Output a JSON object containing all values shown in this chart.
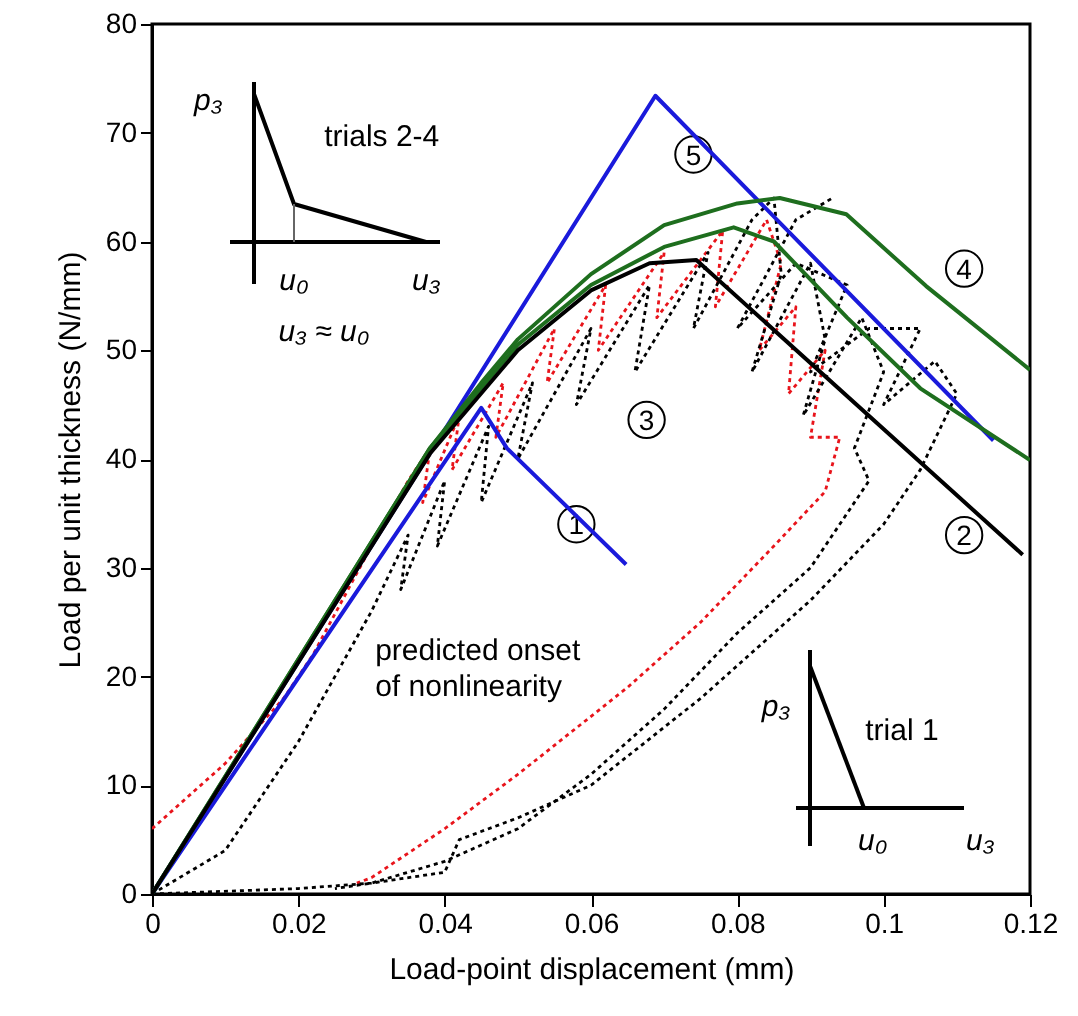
{
  "chart_data": {
    "type": "line",
    "xlabel": "Load-point displacement (mm)",
    "ylabel": "Load per unit thickness (N/mm)",
    "xlim": [
      0,
      0.12
    ],
    "xticks": [
      0,
      0.02,
      0.04,
      0.06,
      0.08,
      0.1,
      0.12
    ],
    "ylim": [
      0,
      80
    ],
    "yticks": [
      0,
      10,
      20,
      30,
      40,
      50,
      60,
      70,
      80
    ],
    "series": [
      {
        "color": "#e8141b",
        "line_style": "dotted",
        "x": [
          0,
          0.01,
          0.018,
          0.022,
          0.03,
          0.035,
          0.038,
          0.037,
          0.042,
          0.041,
          0.048,
          0.047,
          0.055,
          0.054,
          0.062,
          0.061,
          0.07,
          0.069,
          0.078,
          0.077,
          0.084,
          0.086,
          0.083,
          0.088,
          0.087,
          0.092,
          0.09,
          0.094,
          0.092,
          0.085,
          0.075,
          0.065,
          0.05,
          0.04,
          0.03,
          0.028
        ],
        "values": [
          6,
          12,
          18,
          22,
          32,
          38,
          41,
          36,
          44,
          39,
          47,
          42,
          52,
          47,
          56,
          50,
          59,
          53,
          61,
          54,
          62,
          58,
          50,
          54,
          46,
          50,
          42,
          42,
          37,
          32,
          25,
          19,
          11,
          6,
          1.5,
          1
        ]
      },
      {
        "color": "#000000",
        "line_style": "dotted",
        "x": [
          0,
          0.01,
          0.02,
          0.03,
          0.035,
          0.034,
          0.04,
          0.039,
          0.046,
          0.045,
          0.052,
          0.05,
          0.06,
          0.058,
          0.068,
          0.066,
          0.076,
          0.074,
          0.082,
          0.085,
          0.086,
          0.082,
          0.09,
          0.092,
          0.089,
          0.097,
          0.1,
          0.096,
          0.098,
          0.09,
          0.08,
          0.07,
          0.06,
          0.05,
          0.04,
          0.03,
          0.025
        ],
        "values": [
          0,
          4,
          14,
          26,
          33,
          28,
          38,
          32,
          43,
          36,
          47,
          40,
          52,
          45,
          56,
          48,
          59,
          52,
          62,
          64,
          57,
          48,
          58,
          51,
          44,
          53,
          48,
          41,
          38,
          30,
          24,
          17,
          11,
          6,
          3,
          1,
          0.5
        ]
      },
      {
        "color": "#000000",
        "line_style": "dotted",
        "x": [
          0,
          0.02,
          0.03,
          0.04,
          0.042,
          0.05,
          0.06,
          0.075,
          0.09,
          0.1,
          0.105,
          0.11,
          0.107,
          0.1,
          0.105,
          0.098,
          0.09,
          0.095,
          0.088,
          0.08,
          0.088,
          0.093
        ],
        "values": [
          0,
          0.5,
          1,
          2,
          5,
          7,
          10,
          18,
          27,
          34,
          39,
          46,
          49,
          45,
          52,
          52,
          48,
          56,
          58,
          52,
          62,
          64
        ]
      },
      {
        "color": "#1a1adb",
        "line_style": "solid",
        "x": [
          0,
          0.0688,
          0.115
        ],
        "values": [
          0,
          73.4,
          41.7
        ]
      },
      {
        "color": "#1a1adb",
        "line_style": "solid",
        "x": [
          0,
          0.045,
          0.0485,
          0.0648
        ],
        "values": [
          0,
          44.7,
          41,
          30.3
        ]
      },
      {
        "color": "#1e6e1e",
        "line_style": "solid",
        "x": [
          0,
          0.038,
          0.045,
          0.05,
          0.06,
          0.07,
          0.08,
          0.0858,
          0.0949,
          0.1058,
          0.12
        ],
        "values": [
          0,
          41,
          47,
          51,
          57,
          61.5,
          63.5,
          64,
          62.5,
          55.9,
          48.2
        ]
      },
      {
        "color": "#1e6e1e",
        "line_style": "solid",
        "x": [
          0,
          0.038,
          0.05,
          0.06,
          0.07,
          0.0795,
          0.085,
          0.095,
          0.105,
          0.12
        ],
        "values": [
          0,
          41,
          50.5,
          56,
          59.5,
          61.3,
          60,
          53,
          46.5,
          39.9
        ]
      },
      {
        "color": "#000000",
        "line_style": "solid",
        "x": [
          0,
          0.038,
          0.05,
          0.06,
          0.068,
          0.0744,
          0.119
        ],
        "values": [
          0,
          40.5,
          50,
          55.5,
          58,
          58.3,
          31.2
        ]
      }
    ],
    "annotations": [
      {
        "text": "1",
        "x": 0.058,
        "y": 34
      },
      {
        "text": "2",
        "x": 0.111,
        "y": 33
      },
      {
        "text": "3",
        "x": 0.0676,
        "y": 43.6
      },
      {
        "text": "4",
        "x": 0.111,
        "y": 57.5
      },
      {
        "text": "5",
        "x": 0.074,
        "y": 68
      },
      "trials 2-4",
      "p₃",
      "u₀",
      "u₃",
      "trial 1",
      "p₃",
      "u₀",
      "u₃",
      "u₃ ≈ u₀",
      "predicted onset of nonlinearity"
    ]
  }
}
